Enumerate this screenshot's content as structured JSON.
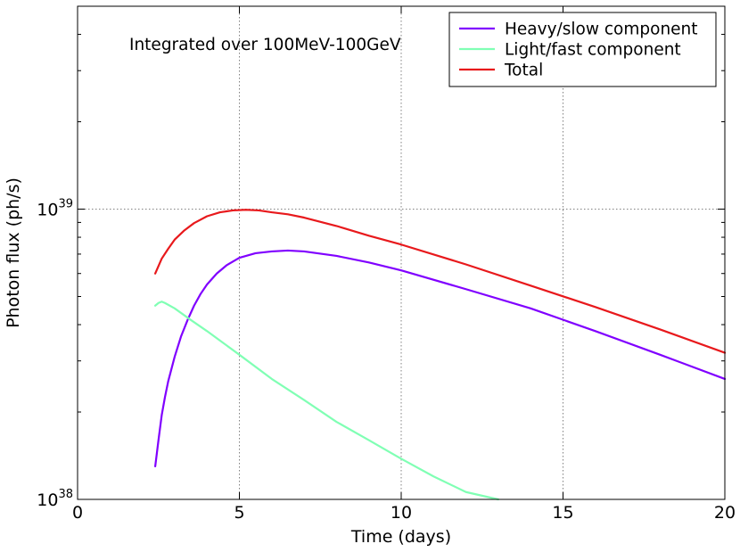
{
  "chart_data": {
    "type": "line",
    "title": "",
    "xlabel": "Time (days)",
    "ylabel": "Photon flux (ph/s)",
    "annotation": "Integrated over 100MeV-100GeV",
    "xlim": [
      0,
      20
    ],
    "ylim": [
      1e+38,
      5e+39
    ],
    "yscale": "log",
    "grid": true,
    "legend_position": "top-right",
    "x_ticks": [
      {
        "value": 0,
        "label": "0"
      },
      {
        "value": 5,
        "label": "5"
      },
      {
        "value": 10,
        "label": "10"
      },
      {
        "value": 15,
        "label": "15"
      },
      {
        "value": 20,
        "label": "20"
      }
    ],
    "y_major_ticks": [
      {
        "value": 1e+38,
        "base": "10",
        "exp": "38"
      },
      {
        "value": 1e+39,
        "base": "10",
        "exp": "39"
      }
    ],
    "y_minor_ticks": [
      2e+38,
      3e+38,
      4e+38,
      5e+38,
      6e+38,
      7e+38,
      8e+38,
      9e+38,
      2e+39,
      3e+39,
      4e+39
    ],
    "series": [
      {
        "name": "Heavy/slow component",
        "color": "#8000ff",
        "x": [
          2.4,
          2.5,
          2.6,
          2.7,
          2.8,
          3.0,
          3.2,
          3.4,
          3.6,
          3.8,
          4.0,
          4.3,
          4.6,
          5.0,
          5.5,
          6.0,
          6.5,
          7.0,
          8.0,
          9.0,
          10.0,
          12.0,
          14.0,
          16.0,
          18.0,
          20.0
        ],
        "y": [
          1.3e+38,
          1.6e+38,
          1.95e+38,
          2.25e+38,
          2.55e+38,
          3.1e+38,
          3.65e+38,
          4.15e+38,
          4.65e+38,
          5.1e+38,
          5.5e+38,
          6e+38,
          6.4e+38,
          6.8e+38,
          7.05e+38,
          7.15e+38,
          7.2e+38,
          7.15e+38,
          6.9e+38,
          6.55e+38,
          6.15e+38,
          5.3e+38,
          4.55e+38,
          3.8e+38,
          3.15e+38,
          2.6e+38
        ]
      },
      {
        "name": "Light/fast component",
        "color": "#80ffb4",
        "x": [
          2.4,
          2.5,
          2.6,
          2.7,
          3.0,
          3.5,
          4.0,
          5.0,
          6.0,
          7.0,
          8.0,
          9.0,
          10.0,
          11.0,
          12.0,
          13.0
        ],
        "y": [
          4.65e+38,
          4.75e+38,
          4.8e+38,
          4.75e+38,
          4.55e+38,
          4.15e+38,
          3.8e+38,
          3.15e+38,
          2.6e+38,
          2.2e+38,
          1.85e+38,
          1.6e+38,
          1.38e+38,
          1.2e+38,
          1.06e+38,
          1e+38
        ]
      },
      {
        "name": "Total",
        "color": "#e8191c",
        "x": [
          2.4,
          2.6,
          2.8,
          3.0,
          3.3,
          3.6,
          4.0,
          4.4,
          4.8,
          5.2,
          5.6,
          6.0,
          6.5,
          7.0,
          8.0,
          9.0,
          10.0,
          12.0,
          14.0,
          16.0,
          18.0,
          20.0
        ],
        "y": [
          6e+38,
          6.75e+38,
          7.3e+38,
          7.85e+38,
          8.45e+38,
          8.95e+38,
          9.45e+38,
          9.75e+38,
          9.9e+38,
          9.95e+38,
          9.9e+38,
          9.75e+38,
          9.6e+38,
          9.35e+38,
          8.75e+38,
          8.1e+38,
          7.55e+38,
          6.45e+38,
          5.45e+38,
          4.6e+38,
          3.85e+38,
          3.2e+38
        ]
      }
    ]
  }
}
